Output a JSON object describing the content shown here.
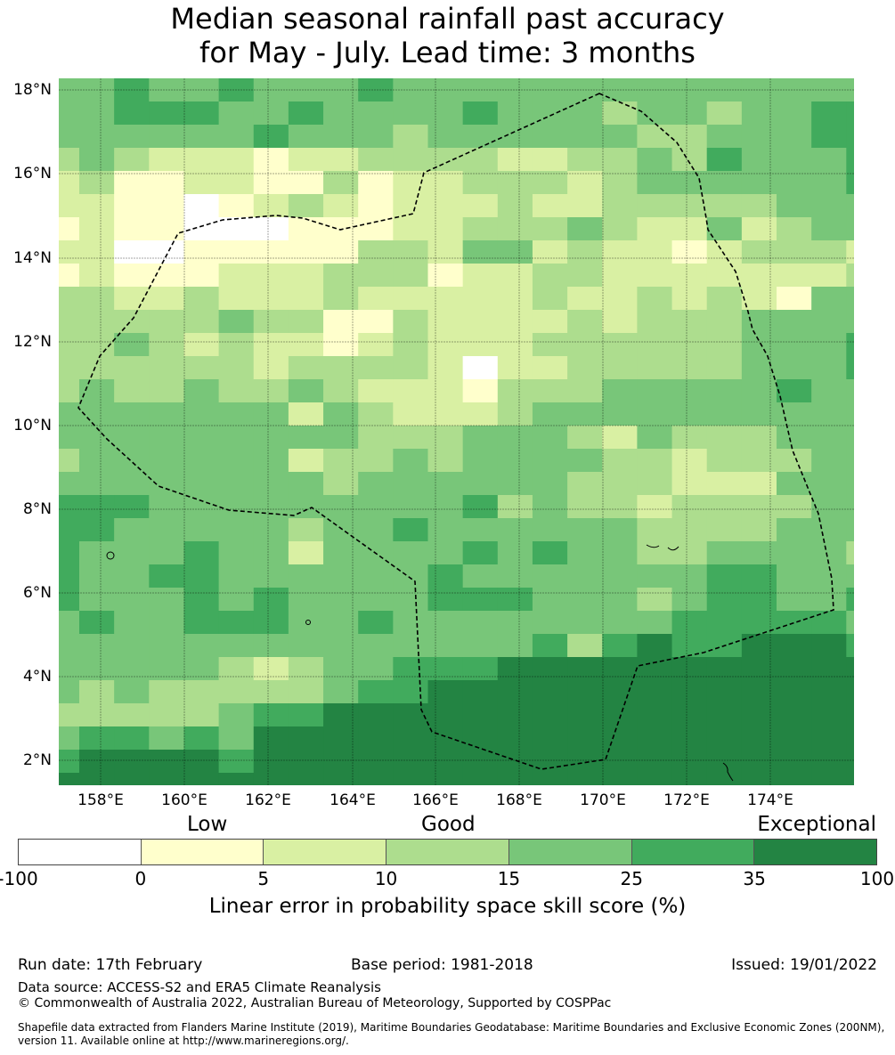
{
  "title_line1": "Median seasonal rainfall past accuracy",
  "title_line2": "for May - July. Lead time: 3 months",
  "map": {
    "lat_labels": [
      "18°N",
      "16°N",
      "14°N",
      "12°N",
      "10°N",
      "8°N",
      "6°N",
      "4°N",
      "2°N"
    ],
    "lon_labels": [
      "158°E",
      "160°E",
      "162°E",
      "164°E",
      "166°E",
      "168°E",
      "170°E",
      "172°E",
      "174°E"
    ],
    "boundary_style": "dashed EEZ outline",
    "grid_note": "skill category per cell, 0=white (<0) ... 6=darkest (35-100); rows north to south",
    "grid_rows": [
      "445445444544444444444444",
      "445554454444544434434455",
      "444444544434444443344455",
      "343222122333322334354445",
      "231122113122333234444445",
      "221101232122232233333444",
      "121100011122333432242344",
      "220011111332442322123332",
      "121112223331223322222223",
      "332232223222223223232144",
      "333334331132222323334444",
      "334323221232223333334445",
      "333333233332022333334445",
      "343343343222133344444544",
      "444444424322234444444444",
      "444444444333444324333444",
      "344444423343444433233344",
      "444444443444444333222444",
      "555444444444534332333344",
      "554444434454444443333444",
      "544454424444545443344443",
      "544554444445444444455444",
      "544454544445554443455445",
      "454455544544444444555554",
      "444444444444445356556665",
      "444443234455566666666666",
      "434333334556666666666666",
      "333334556666666666666666",
      "455454666666666666666666",
      "566665666666666666666666",
      "666666666666666666666666"
    ]
  },
  "legend": {
    "categories": [
      "Low",
      "Good",
      "Exceptional"
    ],
    "colors": [
      "#ffffff",
      "#ffffcc",
      "#d9f0a3",
      "#addd8e",
      "#78c679",
      "#41ab5d",
      "#238443"
    ],
    "boundaries": [
      "-100",
      "0",
      "5",
      "10",
      "15",
      "25",
      "35",
      "100"
    ],
    "title": "Linear error in probability space skill score (%)"
  },
  "footer": {
    "run_date": "Run date: 17th February",
    "base_period": "Base period: 1981-2018",
    "issued": "Issued: 19/01/2022",
    "data_source": "Data source: ACCESS-S2 and ERA5 Climate Reanalysis",
    "copyright": "© Commonwealth of Australia 2022, Australian Bureau of Meteorology, Supported by COSPPac",
    "shapefile_line1": "Shapefile data extracted from Flanders Marine Institute (2019), Maritime Boundaries Geodatabase: Maritime Boundaries and Exclusive Economic Zones (200NM),",
    "shapefile_line2": "version 11. Available online at http://www.marineregions.org/."
  }
}
